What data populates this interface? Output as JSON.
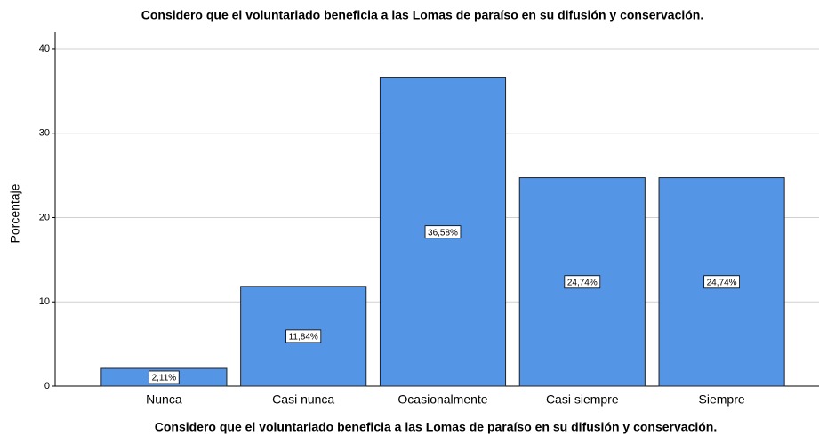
{
  "chart_data": {
    "type": "bar",
    "title": "Considero que el voluntariado beneficia a las Lomas de paraíso en su difusión y conservación.",
    "x_label": "Considero que el voluntariado beneficia a las Lomas de paraíso en su difusión y conservación.",
    "y_label": "Porcentaje",
    "categories": [
      "Nunca",
      "Casi nunca",
      "Ocasionalmente",
      "Casi siempre",
      "Siempre"
    ],
    "values": [
      2.11,
      11.84,
      36.58,
      24.74,
      24.74
    ],
    "value_labels": [
      "2,11%",
      "11,84%",
      "36,58%",
      "24,74%",
      "24,74%"
    ],
    "color": "#5595e6",
    "ylim": [
      0,
      42
    ],
    "yticks": [
      0,
      10,
      20,
      30,
      40
    ],
    "grid": true
  }
}
